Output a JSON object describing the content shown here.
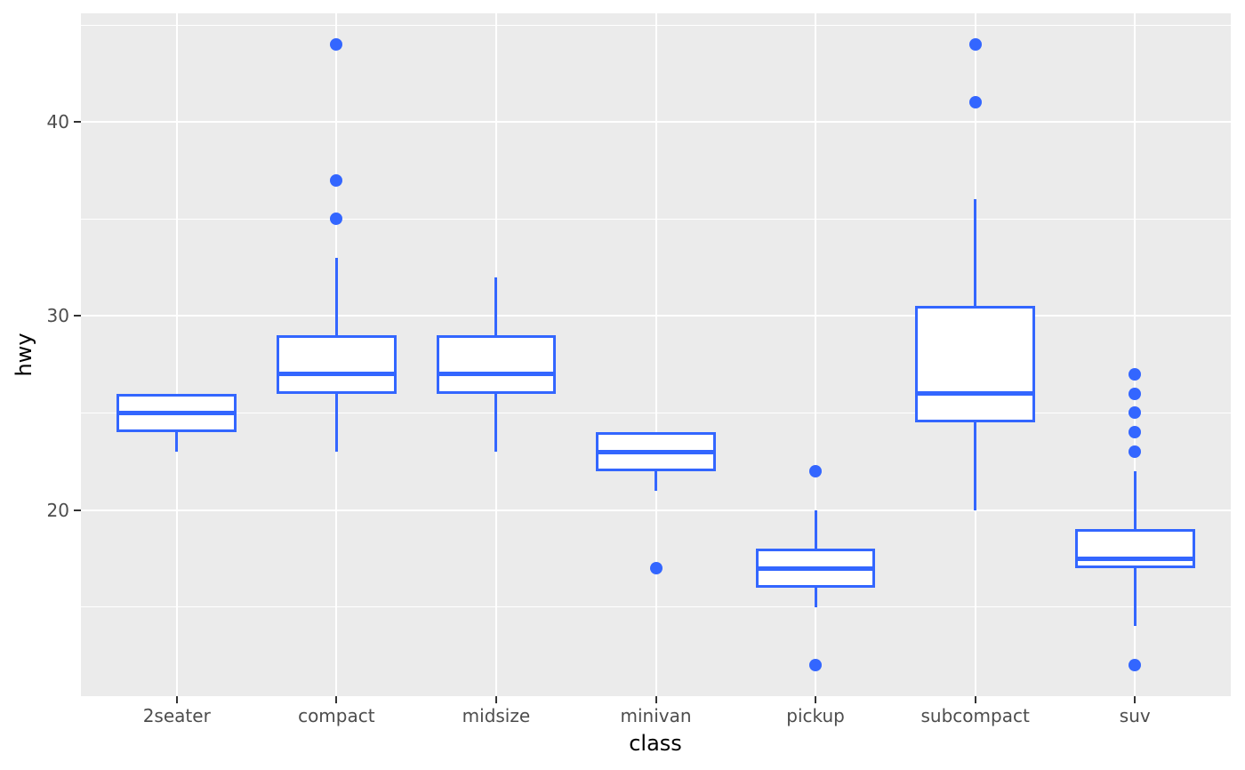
{
  "chart_data": {
    "type": "boxplot",
    "title": "",
    "xlabel": "class",
    "ylabel": "hwy",
    "orientation": "vertical",
    "categories": [
      "2seater",
      "compact",
      "midsize",
      "minivan",
      "pickup",
      "subcompact",
      "suv"
    ],
    "boxes": [
      {
        "category": "2seater",
        "whisker_min": 23,
        "q1": 24,
        "median": 25,
        "q3": 26,
        "whisker_max": 26,
        "outliers": []
      },
      {
        "category": "compact",
        "whisker_min": 23,
        "q1": 26,
        "median": 27,
        "q3": 29,
        "whisker_max": 33,
        "outliers": [
          35,
          37,
          44
        ]
      },
      {
        "category": "midsize",
        "whisker_min": 23,
        "q1": 26,
        "median": 27,
        "q3": 29,
        "whisker_max": 32,
        "outliers": []
      },
      {
        "category": "minivan",
        "whisker_min": 21,
        "q1": 22,
        "median": 23,
        "q3": 24,
        "whisker_max": 24,
        "outliers": [
          17
        ]
      },
      {
        "category": "pickup",
        "whisker_min": 15,
        "q1": 16,
        "median": 17,
        "q3": 18,
        "whisker_max": 20,
        "outliers": [
          12,
          22
        ]
      },
      {
        "category": "subcompact",
        "whisker_min": 20,
        "q1": 24.5,
        "median": 26,
        "q3": 30.5,
        "whisker_max": 36,
        "outliers": [
          41,
          44
        ]
      },
      {
        "category": "suv",
        "whisker_min": 14,
        "q1": 17,
        "median": 17.5,
        "q3": 19,
        "whisker_max": 22,
        "outliers": [
          12,
          23,
          24,
          25,
          26,
          27
        ]
      }
    ],
    "y_major_ticks": [
      20,
      30,
      40
    ],
    "y_minor_gridlines": [
      15,
      25,
      35,
      45
    ],
    "ylim": [
      10.4,
      45.6
    ],
    "grid": "on",
    "legend": "none",
    "colors": {
      "box_stroke": "#3366FF",
      "box_fill": "#FFFFFF",
      "panel_background": "#EBEBEB",
      "gridline": "#FFFFFF",
      "tick_label": "#4D4D4D",
      "axis_title": "#000000",
      "tick_mark": "#333333"
    }
  }
}
